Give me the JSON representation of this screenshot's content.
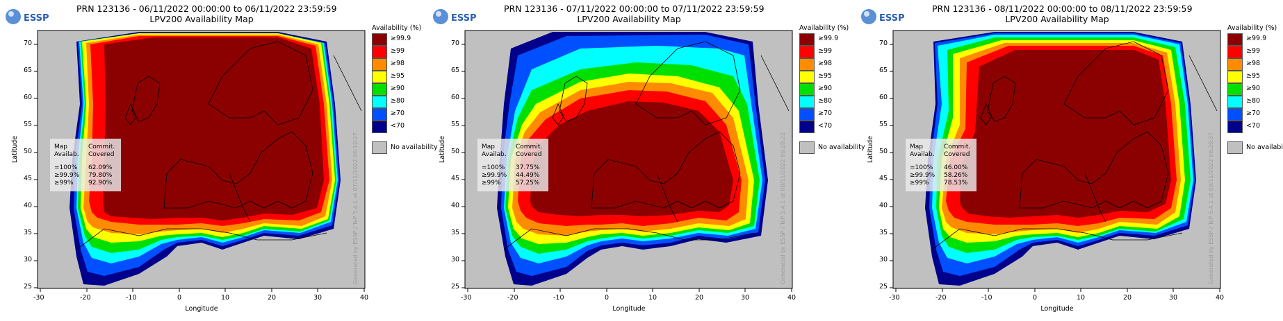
{
  "logo_text": "ESSP",
  "legend": {
    "title": "Availability (%)",
    "items": [
      {
        "label": "≥99.9",
        "color": "#8b0000"
      },
      {
        "label": "≥99",
        "color": "#ff0000"
      },
      {
        "label": "≥98",
        "color": "#ff8c00"
      },
      {
        "label": "≥95",
        "color": "#ffff00"
      },
      {
        "label": "≥90",
        "color": "#00e000"
      },
      {
        "label": "≥80",
        "color": "#00ffff"
      },
      {
        "label": "≥70",
        "color": "#0050ff"
      },
      {
        "label": "<70",
        "color": "#00008b"
      }
    ],
    "no_availability": "No availability"
  },
  "axes": {
    "xlabel": "Longitude",
    "ylabel": "Latitude",
    "xticks": [
      "-30",
      "-20",
      "-10",
      "0",
      "10",
      "20",
      "30",
      "40"
    ],
    "yticks": [
      "70",
      "65",
      "60",
      "55",
      "50",
      "45",
      "40",
      "35",
      "30",
      "25"
    ]
  },
  "stats_headers": {
    "col1": [
      "Map",
      "Availab."
    ],
    "col2": [
      "Commit.",
      "Covered"
    ]
  },
  "stats_rows": [
    "=100%",
    "≥99.9%",
    "≥99%"
  ],
  "panels": [
    {
      "title_line1": "PRN 123136 - 06/11/2022 00:00:00 to 06/11/2022 23:59:59",
      "title_line2": "LPV200 Availability Map",
      "covered": [
        "62.09%",
        "79.80%",
        "92.90%"
      ],
      "generated": "Generated by ESSP / TeP 5.4.1 at 07/11/2022 06:10:27"
    },
    {
      "title_line1": "PRN 123136 - 07/11/2022 00:00:00 to 07/11/2022 23:59:59",
      "title_line2": "LPV200 Availability Map",
      "covered": [
        "37.75%",
        "44.49%",
        "57.25%"
      ],
      "generated": "Generated by ESSP / TeP 5.4.1 at 08/11/2022 06:20:22"
    },
    {
      "title_line1": "PRN 123136 - 08/11/2022 00:00:00 to 08/11/2022 23:59:59",
      "title_line2": "LPV200 Availability Map",
      "covered": [
        "46.00%",
        "58.26%",
        "78.53%"
      ],
      "generated": "Generated by ESSP / TeP 5.4.1 at 09/11/2022 06:20:37"
    }
  ]
}
